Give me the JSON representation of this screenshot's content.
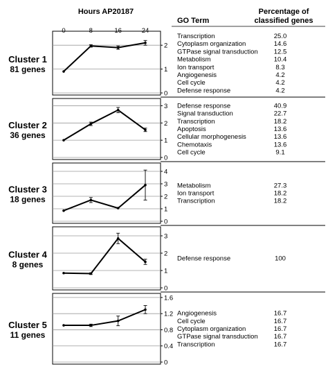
{
  "header": {
    "hours_title": "Hours AP20187",
    "go_term_header": "GO Term",
    "pct_header_line1": "Percentage of",
    "pct_header_line2": "classified genes"
  },
  "chart_data": {
    "type": "line",
    "x_ticks": [
      "0",
      "8",
      "16",
      "24"
    ],
    "clusters": [
      {
        "name": "Cluster 1",
        "genes": "81 genes",
        "x": [
          0,
          8,
          16,
          24
        ],
        "y": [
          0.9,
          1.97,
          1.9,
          2.1
        ],
        "err": [
          0,
          0.05,
          0.07,
          0.1
        ],
        "ylim": [
          0,
          2.5
        ],
        "yticks": [
          {
            "v": 0,
            "label": "0"
          },
          {
            "v": 1,
            "label": "1"
          },
          {
            "v": 2,
            "label": "2"
          }
        ],
        "go_terms": [
          {
            "term": "Transcription",
            "pct": "25.0"
          },
          {
            "term": "Cytoplasm organization",
            "pct": "14.6"
          },
          {
            "term": "GTPase signal transduction",
            "pct": "12.5"
          },
          {
            "term": "Metabolism",
            "pct": "10.4"
          },
          {
            "term": "Ion transport",
            "pct": "8.3"
          },
          {
            "term": "Angiogenesis",
            "pct": "4.2"
          },
          {
            "term": "Cell cycle",
            "pct": "4.2"
          },
          {
            "term": "Defense response",
            "pct": "4.2"
          }
        ]
      },
      {
        "name": "Cluster 2",
        "genes": "36 genes",
        "x": [
          0,
          8,
          16,
          24
        ],
        "y": [
          1.0,
          1.95,
          2.75,
          1.6
        ],
        "err": [
          0,
          0.1,
          0.15,
          0.1
        ],
        "ylim": [
          0,
          3.3
        ],
        "yticks": [
          {
            "v": 0,
            "label": "0"
          },
          {
            "v": 1,
            "label": "1"
          },
          {
            "v": 2,
            "label": "2"
          },
          {
            "v": 3,
            "label": "3"
          }
        ],
        "go_terms": [
          {
            "term": "Defense response",
            "pct": "40.9"
          },
          {
            "term": "Signal transduction",
            "pct": "22.7"
          },
          {
            "term": "Transcription",
            "pct": "18.2"
          },
          {
            "term": "Apoptosis",
            "pct": "13.6"
          },
          {
            "term": "Cellular morphogenesis",
            "pct": "13.6"
          },
          {
            "term": "Chemotaxis",
            "pct": "13.6"
          },
          {
            "term": "Cell cycle",
            "pct": "9.1"
          }
        ]
      },
      {
        "name": "Cluster 3",
        "genes": "18 genes",
        "x": [
          0,
          8,
          16,
          24
        ],
        "y": [
          0.85,
          1.7,
          1.05,
          2.9
        ],
        "err": [
          0,
          0.2,
          0,
          1.2
        ],
        "ylim": [
          0,
          4.5
        ],
        "yticks": [
          {
            "v": 0,
            "label": "0"
          },
          {
            "v": 1,
            "label": "1"
          },
          {
            "v": 2,
            "label": "2"
          },
          {
            "v": 3,
            "label": "3"
          },
          {
            "v": 4,
            "label": "4"
          }
        ],
        "go_terms": [
          {
            "term": "Metabolism",
            "pct": "27.3"
          },
          {
            "term": "Ion transport",
            "pct": "18.2"
          },
          {
            "term": "Transcription",
            "pct": "18.2"
          }
        ]
      },
      {
        "name": "Cluster 4",
        "genes": "8 genes",
        "x": [
          0,
          8,
          16,
          24
        ],
        "y": [
          0.85,
          0.82,
          2.85,
          1.5
        ],
        "err": [
          0,
          0.05,
          0.3,
          0.15
        ],
        "ylim": [
          0,
          3.4
        ],
        "yticks": [
          {
            "v": 0,
            "label": "0"
          },
          {
            "v": 1,
            "label": "1"
          },
          {
            "v": 2,
            "label": "2"
          },
          {
            "v": 3,
            "label": "3"
          }
        ],
        "go_terms": [
          {
            "term": "Defense response",
            "pct": "100"
          }
        ]
      },
      {
        "name": "Cluster 5",
        "genes": "11 genes",
        "x": [
          0,
          8,
          16,
          24
        ],
        "y": [
          0.91,
          0.91,
          1.02,
          1.3
        ],
        "err": [
          0,
          0.03,
          0.12,
          0.1
        ],
        "ylim": [
          0,
          1.65
        ],
        "yticks": [
          {
            "v": 0,
            "label": "0"
          },
          {
            "v": 0.4,
            "label": "0.4"
          },
          {
            "v": 0.8,
            "label": "0.8"
          },
          {
            "v": 1.2,
            "label": "1.2"
          },
          {
            "v": 1.6,
            "label": "1.6"
          }
        ],
        "go_terms": [
          {
            "term": "Angiogenesis",
            "pct": "16.7"
          },
          {
            "term": "Cell cycle",
            "pct": "16.7"
          },
          {
            "term": "Cytoplasm organization",
            "pct": "16.7"
          },
          {
            "term": "GTPase signal transduction",
            "pct": "16.7"
          },
          {
            "term": "Transcription",
            "pct": "16.7"
          }
        ]
      }
    ]
  }
}
